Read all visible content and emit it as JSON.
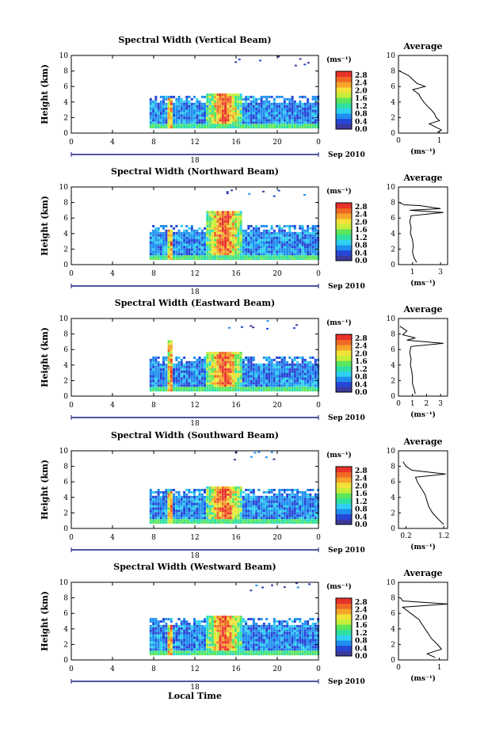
{
  "figure": {
    "xlabel": "Local Time",
    "date_label": "Sep 2010",
    "day_label": "18",
    "colorbar_unit": "(ms⁻¹)",
    "colorbar_ticks": [
      "2.8",
      "2.4",
      "2.0",
      "1.6",
      "1.2",
      "0.8",
      "0.4",
      "0.0"
    ],
    "profile_title": "Average",
    "profile_xlabel": "(ms⁻¹)",
    "colormap": [
      "#ffffff",
      "#3a3a9c",
      "#2646d6",
      "#1f8ef0",
      "#2fd0f0",
      "#2fe0a0",
      "#5ce65c",
      "#c8ee3a",
      "#f2e23a",
      "#f5a52a",
      "#f06a24",
      "#e8322a"
    ]
  },
  "chart_data": [
    {
      "type": "heatmap",
      "title": "Spectral Width (Vertical Beam)",
      "ylabel": "Height (km)",
      "xlabel": "",
      "xlim": [
        0,
        24
      ],
      "ylim": [
        0,
        10
      ],
      "xticks": [
        "0",
        "4",
        "8",
        "12",
        "16",
        "20",
        "0"
      ],
      "yticks": [
        "0",
        "2",
        "4",
        "6",
        "8",
        "10"
      ],
      "colorbar": {
        "range": [
          0,
          3.0
        ],
        "ticks": [
          0.0,
          0.4,
          0.8,
          1.2,
          1.6,
          2.0,
          2.4,
          2.8
        ]
      },
      "echo_regions": [
        {
          "t0": 7.5,
          "t1": 24,
          "h0": 0.4,
          "h1": 4.6,
          "level": "low-mid"
        },
        {
          "t0": 9.2,
          "t1": 9.8,
          "h0": 0.6,
          "h1": 4.2,
          "level": "high"
        },
        {
          "t0": 13.0,
          "t1": 16.5,
          "h0": 1.0,
          "h1": 5.0,
          "level": "high"
        }
      ],
      "profile": {
        "title": "Average",
        "xlabel": "(ms⁻¹)",
        "xlim": [
          0,
          1.2
        ],
        "ylim": [
          0,
          10
        ],
        "xticks": [
          "0",
          "1"
        ],
        "yticks": [
          "0",
          "2",
          "4",
          "6",
          "8",
          "10"
        ],
        "points": [
          [
            0.02,
            8.0
          ],
          [
            0.1,
            7.8
          ],
          [
            0.25,
            7.4
          ],
          [
            0.35,
            6.9
          ],
          [
            0.45,
            6.4
          ],
          [
            0.65,
            6.0
          ],
          [
            0.35,
            5.6
          ],
          [
            0.5,
            5.0
          ],
          [
            0.55,
            4.5
          ],
          [
            0.62,
            4.0
          ],
          [
            0.7,
            3.5
          ],
          [
            0.8,
            3.0
          ],
          [
            0.88,
            2.5
          ],
          [
            0.92,
            2.0
          ],
          [
            1.0,
            1.6
          ],
          [
            0.75,
            1.2
          ],
          [
            0.9,
            0.8
          ],
          [
            1.05,
            0.4
          ],
          [
            0.95,
            0.1
          ]
        ]
      }
    },
    {
      "type": "heatmap",
      "title": "Spectral Width (Northward Beam)",
      "ylabel": "Height (km)",
      "xlabel": "",
      "xlim": [
        0,
        24
      ],
      "ylim": [
        0,
        10
      ],
      "xticks": [
        "0",
        "4",
        "8",
        "12",
        "16",
        "20",
        "0"
      ],
      "yticks": [
        "0",
        "2",
        "4",
        "6",
        "8",
        "10"
      ],
      "colorbar": {
        "range": [
          0,
          3.0
        ],
        "ticks": [
          0.0,
          0.4,
          0.8,
          1.2,
          1.6,
          2.0,
          2.4,
          2.8
        ]
      },
      "echo_regions": [
        {
          "t0": 7.5,
          "t1": 24,
          "h0": 0.4,
          "h1": 4.8,
          "level": "low-mid"
        },
        {
          "t0": 9.2,
          "t1": 9.8,
          "h0": 0.6,
          "h1": 4.3,
          "level": "high"
        },
        {
          "t0": 13.0,
          "t1": 16.5,
          "h0": 1.0,
          "h1": 6.6,
          "level": "high"
        }
      ],
      "profile": {
        "title": "Average",
        "xlabel": "(ms⁻¹)",
        "xlim": [
          0,
          3.5
        ],
        "ylim": [
          0,
          10
        ],
        "xticks": [
          "1",
          "3"
        ],
        "yticks": [
          "0",
          "2",
          "4",
          "6",
          "8",
          "10"
        ],
        "points": [
          [
            0.05,
            8.0
          ],
          [
            0.4,
            7.7
          ],
          [
            1.5,
            7.6
          ],
          [
            3.0,
            7.2
          ],
          [
            0.8,
            7.0
          ],
          [
            3.2,
            6.7
          ],
          [
            0.9,
            6.3
          ],
          [
            0.8,
            5.5
          ],
          [
            0.9,
            4.8
          ],
          [
            0.85,
            4.0
          ],
          [
            1.0,
            3.2
          ],
          [
            1.05,
            2.4
          ],
          [
            1.0,
            1.6
          ],
          [
            1.1,
            0.9
          ],
          [
            1.3,
            0.3
          ]
        ]
      }
    },
    {
      "type": "heatmap",
      "title": "Spectral Width (Eastward Beam)",
      "ylabel": "Height (km)",
      "xlabel": "",
      "xlim": [
        0,
        24
      ],
      "ylim": [
        0,
        10
      ],
      "xticks": [
        "0",
        "4",
        "8",
        "12",
        "16",
        "20",
        "0"
      ],
      "yticks": [
        "0",
        "2",
        "4",
        "6",
        "8",
        "10"
      ],
      "colorbar": {
        "range": [
          0,
          3.0
        ],
        "ticks": [
          0.0,
          0.4,
          0.8,
          1.2,
          1.6,
          2.0,
          2.4,
          2.8
        ]
      },
      "echo_regions": [
        {
          "t0": 7.5,
          "t1": 24,
          "h0": 0.4,
          "h1": 4.8,
          "level": "low-mid"
        },
        {
          "t0": 9.2,
          "t1": 9.8,
          "h0": 0.6,
          "h1": 7.0,
          "level": "high"
        },
        {
          "t0": 13.0,
          "t1": 16.5,
          "h0": 1.0,
          "h1": 5.6,
          "level": "high"
        }
      ],
      "profile": {
        "title": "Average",
        "xlabel": "(ms⁻¹)",
        "xlim": [
          0,
          3.5
        ],
        "ylim": [
          0,
          10
        ],
        "xticks": [
          "0",
          "1",
          "2",
          "3"
        ],
        "yticks": [
          "0",
          "2",
          "4",
          "6",
          "8",
          "10"
        ],
        "points": [
          [
            0.1,
            9.0
          ],
          [
            0.6,
            8.4
          ],
          [
            0.3,
            7.9
          ],
          [
            1.2,
            7.5
          ],
          [
            0.6,
            7.2
          ],
          [
            3.2,
            6.8
          ],
          [
            0.9,
            6.4
          ],
          [
            0.8,
            5.6
          ],
          [
            0.9,
            4.8
          ],
          [
            0.85,
            4.0
          ],
          [
            0.95,
            3.2
          ],
          [
            1.0,
            2.4
          ],
          [
            1.0,
            1.6
          ],
          [
            1.1,
            1.0
          ],
          [
            1.2,
            0.3
          ]
        ]
      }
    },
    {
      "type": "heatmap",
      "title": "Spectral Width (Southward Beam)",
      "ylabel": "Height (km)",
      "xlabel": "",
      "xlim": [
        0,
        24
      ],
      "ylim": [
        0,
        10
      ],
      "xticks": [
        "0",
        "4",
        "8",
        "12",
        "16",
        "20",
        "0"
      ],
      "yticks": [
        "0",
        "2",
        "4",
        "6",
        "8",
        "10"
      ],
      "colorbar": {
        "range": [
          0,
          3.0
        ],
        "ticks": [
          0.0,
          0.4,
          0.8,
          1.2,
          1.6,
          2.0,
          2.4,
          2.8
        ]
      },
      "echo_regions": [
        {
          "t0": 7.5,
          "t1": 24,
          "h0": 0.4,
          "h1": 4.8,
          "level": "low-mid"
        },
        {
          "t0": 9.2,
          "t1": 9.8,
          "h0": 0.6,
          "h1": 4.5,
          "level": "high"
        },
        {
          "t0": 13.0,
          "t1": 16.5,
          "h0": 1.0,
          "h1": 5.2,
          "level": "high"
        }
      ],
      "profile": {
        "title": "Average",
        "xlabel": "(ms⁻¹)",
        "xlim": [
          0,
          1.3
        ],
        "ylim": [
          0,
          10
        ],
        "xticks": [
          "0.2",
          "1.2"
        ],
        "yticks": [
          "0",
          "2",
          "4",
          "6",
          "8",
          "10"
        ],
        "points": [
          [
            0.12,
            8.6
          ],
          [
            0.2,
            8.0
          ],
          [
            0.35,
            7.5
          ],
          [
            1.25,
            7.0
          ],
          [
            0.45,
            6.6
          ],
          [
            0.5,
            6.0
          ],
          [
            0.6,
            5.2
          ],
          [
            0.7,
            4.4
          ],
          [
            0.75,
            3.6
          ],
          [
            0.8,
            2.8
          ],
          [
            0.9,
            2.0
          ],
          [
            1.05,
            1.2
          ],
          [
            1.2,
            0.5
          ]
        ]
      }
    },
    {
      "type": "heatmap",
      "title": "Spectral Width (Westward Beam)",
      "ylabel": "Height (km)",
      "xlabel": "Local Time",
      "xlim": [
        0,
        24
      ],
      "ylim": [
        0,
        10
      ],
      "xticks": [
        "0",
        "4",
        "8",
        "12",
        "16",
        "20",
        "0"
      ],
      "yticks": [
        "0",
        "2",
        "4",
        "6",
        "8",
        "10"
      ],
      "colorbar": {
        "range": [
          0,
          3.0
        ],
        "ticks": [
          0.0,
          0.4,
          0.8,
          1.2,
          1.6,
          2.0,
          2.4,
          2.8
        ]
      },
      "echo_regions": [
        {
          "t0": 7.5,
          "t1": 24,
          "h0": 0.4,
          "h1": 5.2,
          "level": "low-mid"
        },
        {
          "t0": 9.2,
          "t1": 9.8,
          "h0": 0.6,
          "h1": 4.2,
          "level": "high"
        },
        {
          "t0": 13.0,
          "t1": 16.5,
          "h0": 1.0,
          "h1": 5.6,
          "level": "high"
        }
      ],
      "profile": {
        "title": "Average",
        "xlabel": "(ms⁻¹)",
        "xlim": [
          0,
          1.2
        ],
        "ylim": [
          0,
          10
        ],
        "xticks": [
          "0",
          "1"
        ],
        "yticks": [
          "0",
          "2",
          "4",
          "6",
          "8",
          "10"
        ],
        "points": [
          [
            0.05,
            8.0
          ],
          [
            0.1,
            7.6
          ],
          [
            1.2,
            7.2
          ],
          [
            0.1,
            6.8
          ],
          [
            0.3,
            6.0
          ],
          [
            0.5,
            5.2
          ],
          [
            0.6,
            4.4
          ],
          [
            0.7,
            3.6
          ],
          [
            0.8,
            2.8
          ],
          [
            0.95,
            2.0
          ],
          [
            1.05,
            1.4
          ],
          [
            0.7,
            0.8
          ],
          [
            0.9,
            0.3
          ]
        ]
      }
    }
  ]
}
